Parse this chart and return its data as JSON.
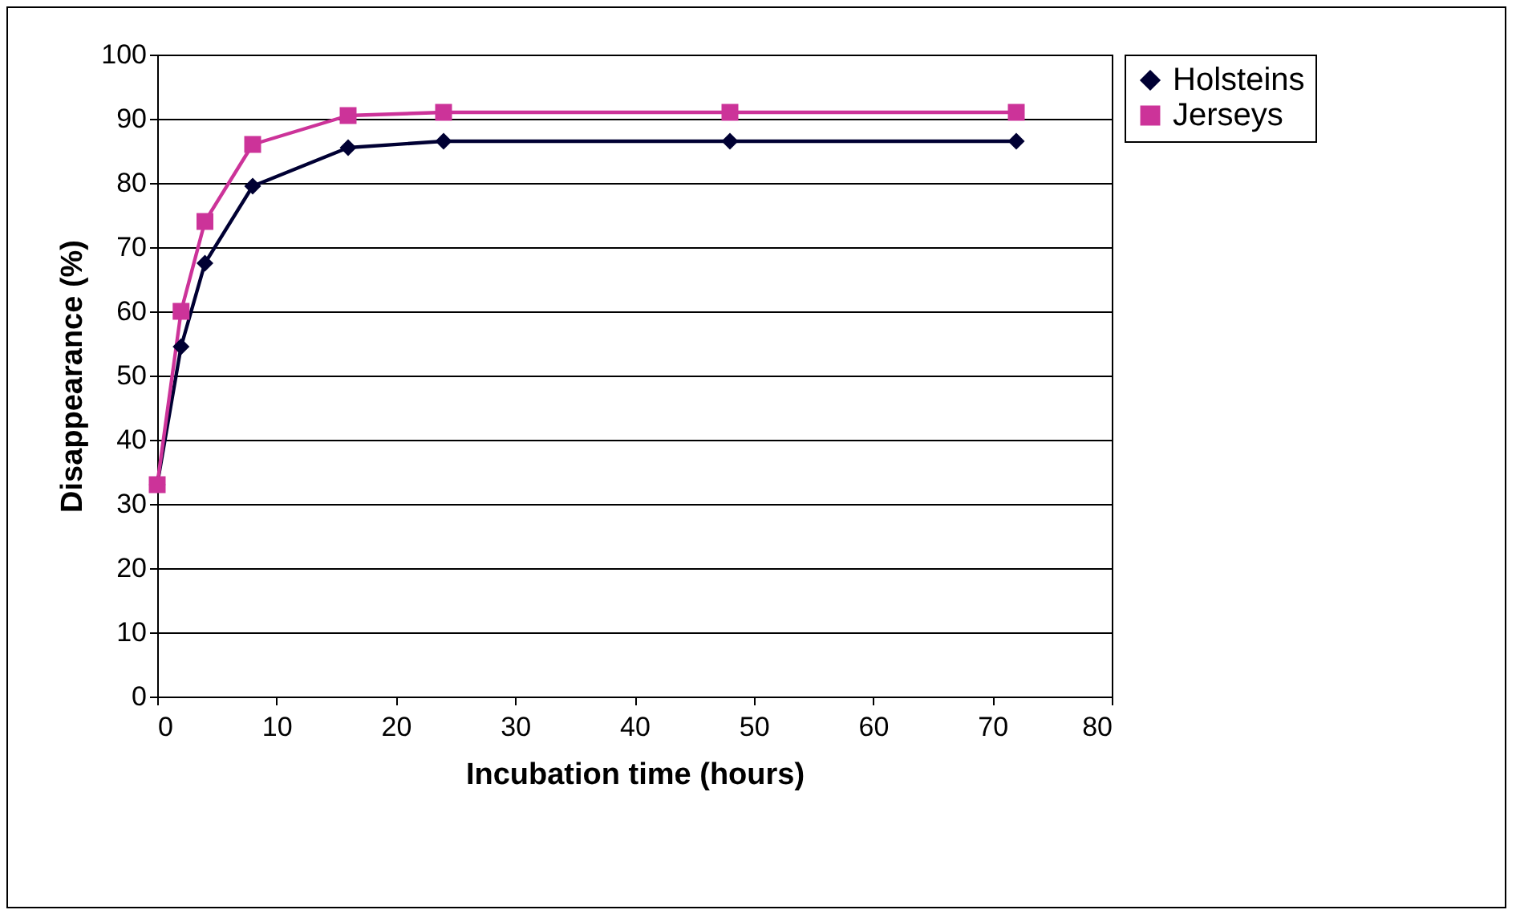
{
  "chart_data": {
    "type": "line",
    "xlabel": "Incubation time (hours)",
    "ylabel": "Disappearance (%)",
    "x": [
      0,
      2,
      4,
      8,
      16,
      24,
      48,
      72
    ],
    "series": [
      {
        "name": "Holsteins",
        "color": "#000033",
        "marker": "diamond",
        "values": [
          33,
          54.5,
          67.5,
          79.5,
          85.5,
          86.5,
          86.5,
          86.5
        ]
      },
      {
        "name": "Jerseys",
        "color": "#cc3399",
        "marker": "square",
        "values": [
          33,
          60,
          74,
          86,
          90.5,
          91,
          91,
          91
        ]
      }
    ],
    "xlim": [
      0,
      80
    ],
    "xticks": [
      0,
      10,
      20,
      30,
      40,
      50,
      60,
      70,
      80
    ],
    "ylim": [
      0,
      100
    ],
    "yticks": [
      0,
      10,
      20,
      30,
      40,
      50,
      60,
      70,
      80,
      90,
      100
    ],
    "grid": "y",
    "legend": "right",
    "line_style": "solid"
  }
}
